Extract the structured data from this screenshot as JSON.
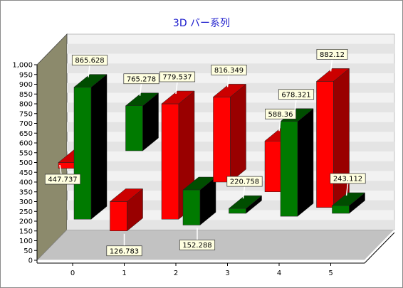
{
  "chart_data": {
    "type": "bar",
    "title": "3D バー系列",
    "categories": [
      "0",
      "1",
      "2",
      "3",
      "4",
      "5"
    ],
    "y_axis": {
      "min": 0,
      "max": 1000,
      "step": 50,
      "ticks": [
        "0",
        "50",
        "100",
        "150",
        "200",
        "250",
        "300",
        "350",
        "400",
        "450",
        "500",
        "550",
        "600",
        "650",
        "700",
        "750",
        "800",
        "850",
        "900",
        "950",
        "1,000"
      ]
    },
    "grid": true,
    "legend": "none",
    "series": [
      {
        "color": "#ff0000",
        "side_color": "#990000",
        "top_color": "#cc0000",
        "ranges": [
          [
            470,
            500
          ],
          [
            150,
            300
          ],
          [
            210,
            800
          ],
          [
            400,
            835
          ],
          [
            350,
            610
          ],
          [
            270,
            915
          ]
        ],
        "labels": [
          null,
          "126.783",
          "779.537",
          "816.349",
          "588.36",
          "882.12"
        ]
      },
      {
        "color": "#007a00",
        "side_color": "#000000",
        "top_color": "#004d00",
        "ranges": [
          [
            210,
            885
          ],
          [
            560,
            790
          ],
          [
            180,
            360
          ],
          [
            240,
            265
          ],
          [
            225,
            710
          ],
          [
            240,
            280
          ]
        ],
        "labels": [
          "865.628",
          "765.278",
          "152.288",
          "220.758",
          "678.321",
          "243.112"
        ]
      }
    ],
    "extra_labels": [
      "447.737"
    ]
  }
}
